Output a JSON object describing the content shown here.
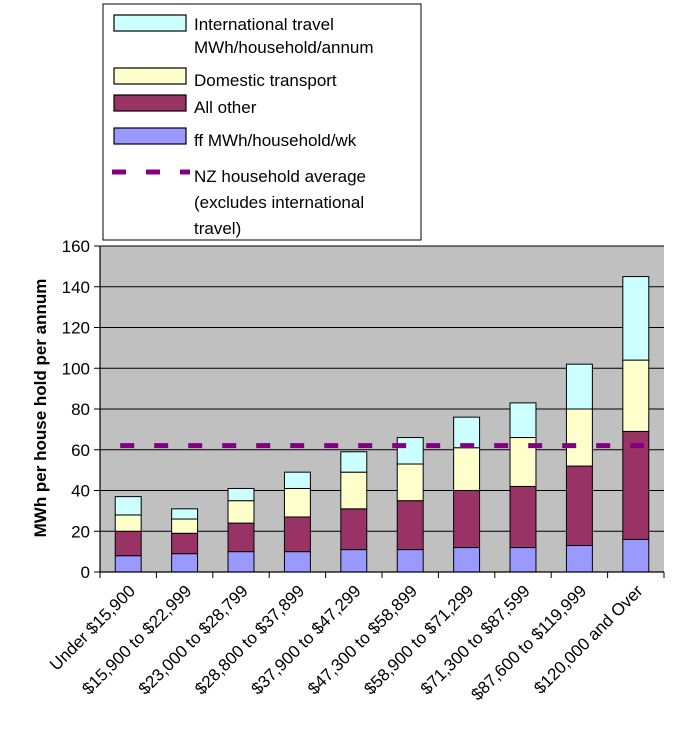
{
  "chart_data": {
    "type": "bar",
    "stacked": true,
    "title": "",
    "xlabel": "",
    "ylabel": "MWh per house hold per annum",
    "ylim": [
      0,
      160
    ],
    "yticks": [
      0,
      20,
      40,
      60,
      80,
      100,
      120,
      140,
      160
    ],
    "grid": true,
    "legend_position": "top",
    "background_color": "#c0c0c0",
    "categories": [
      "Under $15,900",
      "$15,900 to $22,999",
      "$23,000 to $28,799",
      "$28,800 to $37,899",
      "$37,900 to $47,299",
      "$47,300 to $58,899",
      "$58,900 to $71,299",
      "$71,300 to $87,599",
      "$87,600 to $119,999",
      "$120,000 and Over"
    ],
    "series": [
      {
        "name": "ff MWh/household/wk",
        "color": "#9999ff",
        "values": [
          8,
          9,
          10,
          10,
          11,
          11,
          12,
          12,
          13,
          16
        ]
      },
      {
        "name": "All other",
        "color": "#993366",
        "values": [
          12,
          10,
          14,
          17,
          20,
          24,
          28,
          30,
          39,
          53
        ]
      },
      {
        "name": "Domestic transport",
        "color": "#ffffcc",
        "values": [
          8,
          7,
          11,
          14,
          18,
          18,
          21,
          24,
          28,
          35
        ]
      },
      {
        "name": "International travel MWh/household/annum",
        "color": "#ccffff",
        "values": [
          9,
          5,
          6,
          8,
          10,
          13,
          15,
          17,
          22,
          41
        ]
      }
    ],
    "reference_line": {
      "name": "NZ household average (excludes international travel)",
      "value": 62,
      "color": "#800080",
      "style": "dashed"
    },
    "legend_entries": [
      {
        "text": "International travel MWh/household/annum",
        "swatch": "box",
        "color": "#ccffff"
      },
      {
        "text": "Domestic transport",
        "swatch": "box",
        "color": "#ffffcc"
      },
      {
        "text": "All other",
        "swatch": "box",
        "color": "#993366"
      },
      {
        "text": "ff MWh/household/wk",
        "swatch": "box",
        "color": "#9999ff"
      },
      {
        "text": "NZ household average (excludes international travel)",
        "swatch": "dash",
        "color": "#800080"
      }
    ]
  }
}
